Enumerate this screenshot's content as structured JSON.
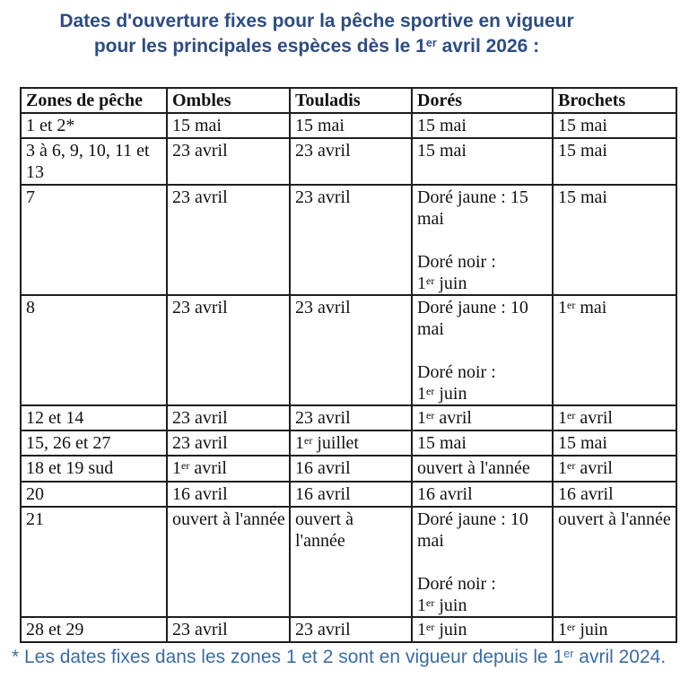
{
  "title": {
    "lines": [
      "Dates d'ouverture fixes pour la pêche sportive en vigueur",
      "pour les principales espèces dès le 1^er avril 2026 :"
    ]
  },
  "table": {
    "headers": [
      "Zones de pêche",
      "Ombles",
      "Touladis",
      "Dorés",
      "Brochets"
    ],
    "header_keys": [
      "zones",
      "ombles",
      "touladis",
      "dores",
      "brochets"
    ],
    "rows": [
      [
        "1 et 2*",
        "15 mai",
        "15 mai",
        "15 mai",
        "15 mai"
      ],
      [
        "3 à 6, 9, 10, 11 et 13",
        "23 avril",
        "23 avril",
        "15 mai",
        "15 mai"
      ],
      [
        "7",
        "23 avril",
        "23 avril",
        "Doré jaune : 15 mai\n\nDoré noir :\n1^er juin",
        "15 mai"
      ],
      [
        "8",
        "23 avril",
        "23 avril",
        "Doré jaune : 10 mai\n\nDoré noir :\n1^er juin",
        "1^er mai"
      ],
      [
        "12 et 14",
        "23 avril",
        "23 avril",
        "1^er avril",
        "1^er avril"
      ],
      [
        "15, 26 et 27",
        "23 avril",
        "1^er juillet",
        "15 mai",
        "15 mai"
      ],
      [
        "18 et 19 sud",
        "1^er avril",
        "16 avril",
        "ouvert à l'année",
        "1^er avril"
      ],
      [
        "20",
        "16 avril",
        "16 avril",
        "16 avril",
        "16 avril"
      ],
      [
        "21",
        "ouvert à l'année",
        "ouvert à l'année",
        "Doré jaune : 10 mai\n\nDoré noir :\n1^er juin",
        "ouvert à l'année"
      ],
      [
        "28 et 29",
        "23 avril",
        "23 avril",
        "1^er juin",
        "1^er juin"
      ]
    ]
  },
  "footnote": "* Les dates fixes dans les zones 1 et 2 sont en vigueur depuis le 1^er avril 2024.",
  "colors": {
    "title_text": "#2E4D7E",
    "footnote_text": "#3D6C9E",
    "table_border": "#1e1e1e",
    "table_text": "#121212",
    "background": "#ffffff"
  }
}
